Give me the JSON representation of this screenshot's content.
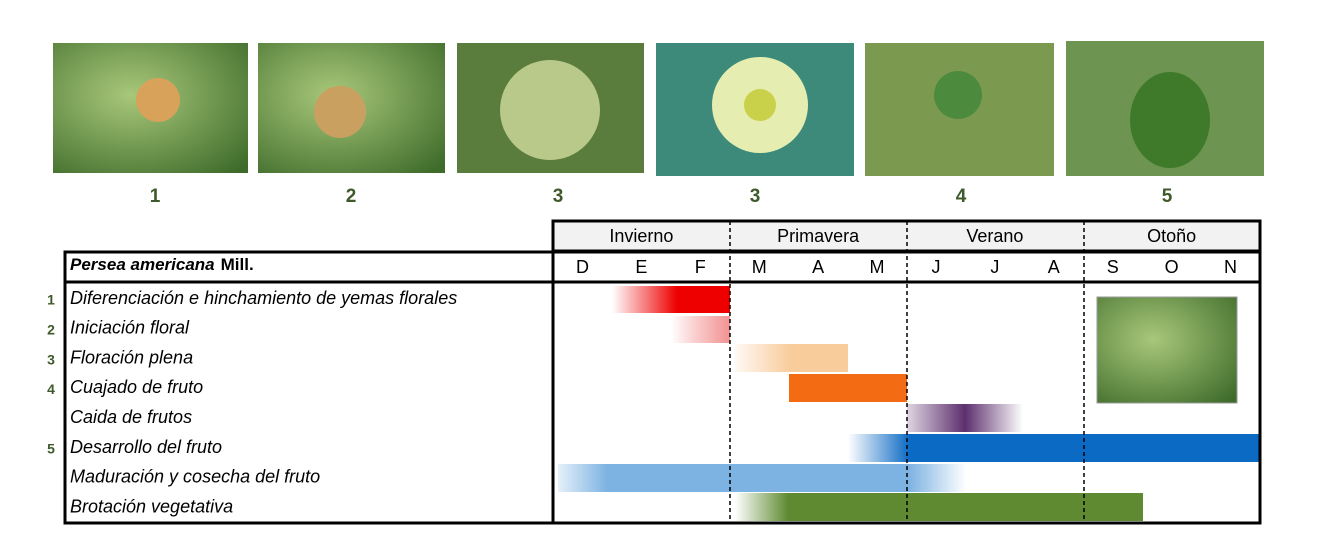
{
  "photos": {
    "captions": [
      "1",
      "2",
      "3",
      "3",
      "4",
      "5"
    ]
  },
  "table": {
    "seasons": [
      "Invierno",
      "Primavera",
      "Verano",
      "Otoño"
    ],
    "species": "Persea americana",
    "authority": "Mill.",
    "months": [
      "D",
      "E",
      "F",
      "M",
      "A",
      "M",
      "J",
      "J",
      "A",
      "S",
      "O",
      "N"
    ],
    "rows": [
      {
        "number": "1",
        "label": "Diferenciación e hinchamiento de yemas florales"
      },
      {
        "number": "2",
        "label": "Iniciación floral"
      },
      {
        "number": "3",
        "label": "Floración plena"
      },
      {
        "number": "4",
        "label": "Cuajado de fruto"
      },
      {
        "label": "Caida de frutos"
      },
      {
        "number": "5",
        "label": "Desarrollo del fruto"
      },
      {
        "label": "Maduración y cosecha del fruto"
      },
      {
        "label": "Brotación vegetativa"
      }
    ]
  }
}
